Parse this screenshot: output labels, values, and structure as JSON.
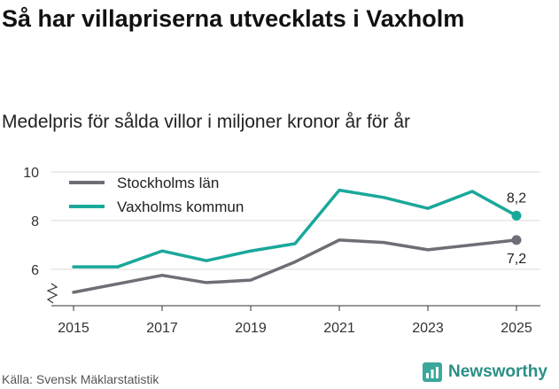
{
  "title": "Så har villapriserna utvecklats i Vaxholm",
  "subtitle": "Medelpris för sålda villor i miljoner kronor år för år",
  "footer": {
    "source": "Källa: Svensk Mäklarstatistik",
    "brand": "Newsworthy",
    "logo_icon": "newsworthy-logo-icon"
  },
  "chart_data": {
    "type": "line",
    "x": [
      2015,
      2016,
      2017,
      2018,
      2019,
      2020,
      2021,
      2022,
      2023,
      2024,
      2025
    ],
    "series": [
      {
        "name": "Stockholms län",
        "color": "#6e6e76",
        "values": [
          5.05,
          5.4,
          5.75,
          5.45,
          5.55,
          6.3,
          7.2,
          7.1,
          6.8,
          7.0,
          7.2
        ],
        "end_label": "7,2"
      },
      {
        "name": "Vaxholms kommun",
        "color": "#1aa89a",
        "values": [
          6.1,
          6.1,
          6.75,
          6.35,
          6.75,
          7.05,
          9.25,
          8.95,
          8.5,
          9.2,
          8.2
        ],
        "end_label": "8,2"
      }
    ],
    "xticks": [
      "2015",
      "2017",
      "2019",
      "2021",
      "2023",
      "2025"
    ],
    "yticks": [
      "6",
      "8",
      "10"
    ],
    "ylim": [
      4.5,
      10
    ],
    "grid": true,
    "legend": "top-left",
    "axis_break": true
  }
}
